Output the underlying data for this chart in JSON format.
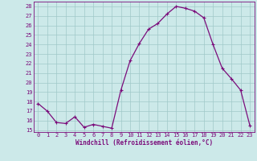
{
  "x": [
    0,
    1,
    2,
    3,
    4,
    5,
    6,
    7,
    8,
    9,
    10,
    11,
    12,
    13,
    14,
    15,
    16,
    17,
    18,
    19,
    20,
    21,
    22,
    23
  ],
  "y": [
    17.8,
    17.0,
    15.8,
    15.7,
    16.4,
    15.3,
    15.6,
    15.4,
    15.2,
    19.2,
    22.3,
    24.1,
    25.6,
    26.2,
    27.2,
    28.0,
    27.8,
    27.5,
    26.8,
    24.0,
    21.5,
    20.4,
    19.2,
    15.5
  ],
  "xlim": [
    -0.5,
    23.5
  ],
  "ylim": [
    14.8,
    28.5
  ],
  "yticks": [
    15,
    16,
    17,
    18,
    19,
    20,
    21,
    22,
    23,
    24,
    25,
    26,
    27,
    28
  ],
  "xticks": [
    0,
    1,
    2,
    3,
    4,
    5,
    6,
    7,
    8,
    9,
    10,
    11,
    12,
    13,
    14,
    15,
    16,
    17,
    18,
    19,
    20,
    21,
    22,
    23
  ],
  "xlabel": "Windchill (Refroidissement éolien,°C)",
  "line_color": "#7b0c7b",
  "marker": "+",
  "marker_size": 3,
  "marker_ew": 0.8,
  "line_width": 0.9,
  "bg_color": "#cce9e9",
  "grid_color": "#a0c8c8",
  "tick_fontsize": 5,
  "xlabel_fontsize": 5.5
}
